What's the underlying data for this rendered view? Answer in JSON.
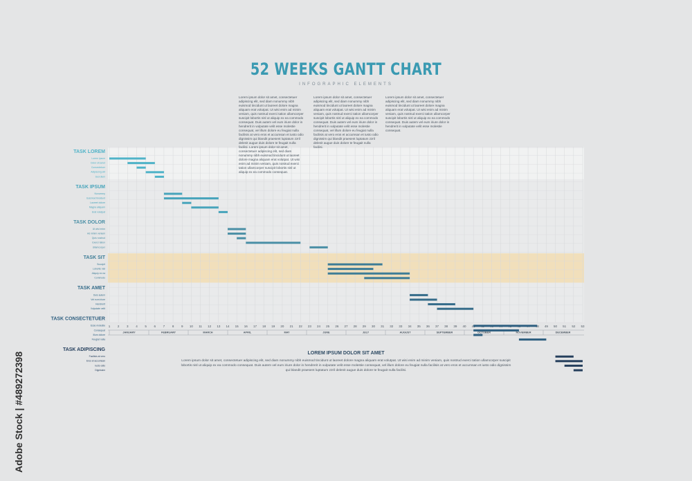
{
  "chart_data": {
    "type": "gantt",
    "title": "52 WEEKS GANTT CHART",
    "subtitle": "INFOGRAPHIC ELEMENTS",
    "paragraphs": [
      "Lorem ipsum dolor sit amet, consectetuer adipiscing elit, sed diam nonummy nibh euismod tincidunt ut laoreet dolore magna aliquam erat volutpat. Ut wisi enim ad minim veniam, quis nostrud exerci tation ullamcorper suscipit lobortis nisl ut aliquip ex ea commodo consequat. Duis autem vel eum iriure dolor in hendrerit in vulputate velit esse molestie consequat, vel illum dolore eu feugiat nulla facilisis at vero eros et accumsan et iusto odio dignissim qui blandit praesent luptatum zzril delenit augue duis dolore te feugait nulla facilisi. Lorem ipsum dolor sit amet, consectetuer adipiscing elit, sed diam nonummy nibh euismod tincidunt ut laoreet dolore magna aliquam erat volutpat. Ut wisi enim ad minim veniam, quis nostrud exerci tation ullamcorper suscipit lobortis nisl ut aliquip ex ea commodo consequat.",
      "Lorem ipsum dolor sit amet, consectetuer adipiscing elit, sed diam nonummy nibh euismod tincidunt ut laoreet dolore magna aliquam erat volutpat. Ut wisi enim ad minim veniam, quis nostrud exerci tation ullamcorper suscipit lobortis nisl ut aliquip ex ea commodo consequat. Duis autem vel eum iriure dolor in hendrerit in vulputate velit esse molestie consequat, vel illum dolore eu feugiat nulla facilisis at vero eros et accumsan et iusto odio dignissim qui blandit praesent luptatum zzril delenit augue duis dolore te feugait nulla facilisi.",
      "Lorem ipsum dolor sit amet, consectetuer adipiscing elit, sed diam nonummy nibh euismod tincidunt ut laoreet dolore magna aliquam erat volutpat. Ut wisi enim ad minim veniam, quis nostrud exerci tation ullamcorper suscipit lobortis nisl ut aliquip ex ea commodo consequat. Duis autem vel eum iriure dolor in hendrerit in vulputate velit esse molestie consequat."
    ],
    "xlim": [
      1,
      53
    ],
    "xticks": [
      1,
      2,
      3,
      4,
      5,
      6,
      7,
      8,
      9,
      10,
      11,
      12,
      13,
      14,
      15,
      16,
      17,
      18,
      19,
      20,
      21,
      22,
      23,
      24,
      25,
      26,
      27,
      28,
      29,
      30,
      31,
      32,
      33,
      34,
      35,
      36,
      37,
      38,
      39,
      40,
      41,
      42,
      43,
      44,
      45,
      46,
      47,
      48,
      49,
      50,
      51,
      52,
      53
    ],
    "months": [
      "JANUARY",
      "FEBRUARY",
      "MARCH",
      "APRIL",
      "MAY",
      "JUNE",
      "JULY",
      "AUGUST",
      "SEPTEMBER",
      "OCTOBER",
      "NOVEMBER",
      "DECEMBER"
    ],
    "series": [
      {
        "name": "TASK LOREM",
        "color": "#4fb3c8",
        "tasks": [
          {
            "label": "Lorem ipsum",
            "start": 1,
            "end": 5
          },
          {
            "label": "Dolor sit amet",
            "start": 3,
            "end": 6
          },
          {
            "label": "Consectetuer",
            "start": 4,
            "end": 5
          },
          {
            "label": "Adipiscing elit",
            "start": 5,
            "end": 7
          },
          {
            "label": "Sed diam",
            "start": 6,
            "end": 7
          }
        ]
      },
      {
        "name": "TASK IPSUM",
        "color": "#47a4bb",
        "tasks": [
          {
            "label": "Nonummy",
            "start": 7,
            "end": 9
          },
          {
            "label": "Euismod tincidunt",
            "start": 7,
            "end": 13
          },
          {
            "label": "Laoreet dolore",
            "start": 9,
            "end": 10
          },
          {
            "label": "Magna aliquam",
            "start": 10,
            "end": 13
          },
          {
            "label": "Erat volutpat",
            "start": 13,
            "end": 14
          }
        ]
      },
      {
        "name": "TASK DOLOR",
        "color": "#4a8fa6",
        "tasks": [
          {
            "label": "Ut wisi enim",
            "start": 14,
            "end": 16
          },
          {
            "label": "Ad minim veniam",
            "start": 14,
            "end": 16
          },
          {
            "label": "Quis nostrud",
            "start": 15,
            "end": 16
          },
          {
            "label": "Exerci tation",
            "start": 16,
            "end": 22
          },
          {
            "label": "Ullamcorper",
            "start": 23,
            "end": 25
          }
        ]
      },
      {
        "name": "TASK SIT",
        "color": "#3d7c96",
        "highlight": "#f2ddb3",
        "tasks": [
          {
            "label": "Suscipit",
            "start": 25,
            "end": 31
          },
          {
            "label": "Lobortis nisl",
            "start": 25,
            "end": 30
          },
          {
            "label": "Aliquip ex ea",
            "start": 25,
            "end": 34
          },
          {
            "label": "Commodo",
            "start": 29,
            "end": 34
          }
        ]
      },
      {
        "name": "TASK AMET",
        "color": "#356c8a",
        "tasks": [
          {
            "label": "Duis autem",
            "start": 34,
            "end": 36
          },
          {
            "label": "Vel eum iriure",
            "start": 34,
            "end": 37
          },
          {
            "label": "Hendrerit",
            "start": 36,
            "end": 39
          },
          {
            "label": "Vulputate velit",
            "start": 37,
            "end": 41
          }
        ]
      },
      {
        "name": "TASK CONSECTETUER",
        "color": "#2e5f80",
        "tasks": [
          {
            "label": "Esse molestie",
            "start": 41,
            "end": 48
          },
          {
            "label": "Consequat",
            "start": 41,
            "end": 46
          },
          {
            "label": "Illum dolore",
            "start": 41,
            "end": 42
          },
          {
            "label": "Feugiat nulla",
            "start": 46,
            "end": 49
          }
        ]
      },
      {
        "name": "TASK ADIPISCING",
        "color": "#253f5d",
        "tasks": [
          {
            "label": "Facilisis at vero",
            "start": 50,
            "end": 52
          },
          {
            "label": "Eros et accumsan",
            "start": 50,
            "end": 53
          },
          {
            "label": "Iusto odio",
            "start": 51,
            "end": 53
          },
          {
            "label": "Dignissim",
            "start": 52,
            "end": 53
          }
        ]
      }
    ],
    "footer_title": "LOREM IPSUM DOLOR SIT AMET",
    "footer_text": "Lorem ipsum dolor sit amet, consectetuer adipiscing elit, sed diam nonummy nibh euismod tincidunt ut laoreet dolore magna aliquam erat volutpat. Ut wisi enim ad minim veniam, quis nostrud exerci tation ullamcorper suscipit lobortis nisl ut aliquip ex ea commodo consequat. Duis autem vel eum iriure dolor in hendrerit in vulputate velit esse molestie consequat, vel illum dolore eu feugiat nulla facilisis at vero eros et accumsan et iusto odio dignissim qui blandit praesent luptatum zzril delenit augue duis dolore te feugait nulla facilisi.",
    "watermark": "Adobe Stock | #489272398"
  }
}
